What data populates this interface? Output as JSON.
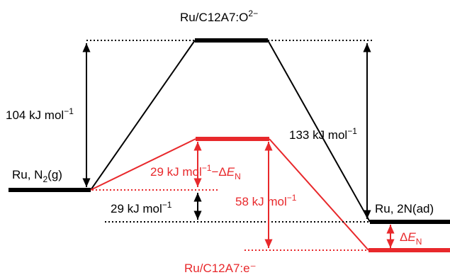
{
  "colors": {
    "ru_o2": "#000000",
    "ru_e": "#e8282b"
  },
  "labels": {
    "top_title": {
      "main": "Ru/C12A7:O",
      "sup": "2−"
    },
    "bottom_title": "Ru/C12A7:e⁻",
    "left_state": {
      "main": "Ru, N",
      "sub": "2",
      "tail": "(g)"
    },
    "right_state": "Ru, 2N(ad)",
    "barrier_104": {
      "main": "104 kJ mol",
      "sup": "−1"
    },
    "barrier_133": {
      "main": "133 kJ mol",
      "sup": "−1"
    },
    "barrier_red_left": {
      "main": "29 kJ mol",
      "sup": "−1",
      "tail": "−Δ",
      "e": "E",
      "sub": "N"
    },
    "offset_29": {
      "main": "29 kJ mol",
      "sup": "−1"
    },
    "barrier_58": {
      "main": "58 kJ mol",
      "sup": "−1"
    },
    "delta_en": {
      "delta": "Δ",
      "e": "E",
      "sub": "N"
    }
  }
}
